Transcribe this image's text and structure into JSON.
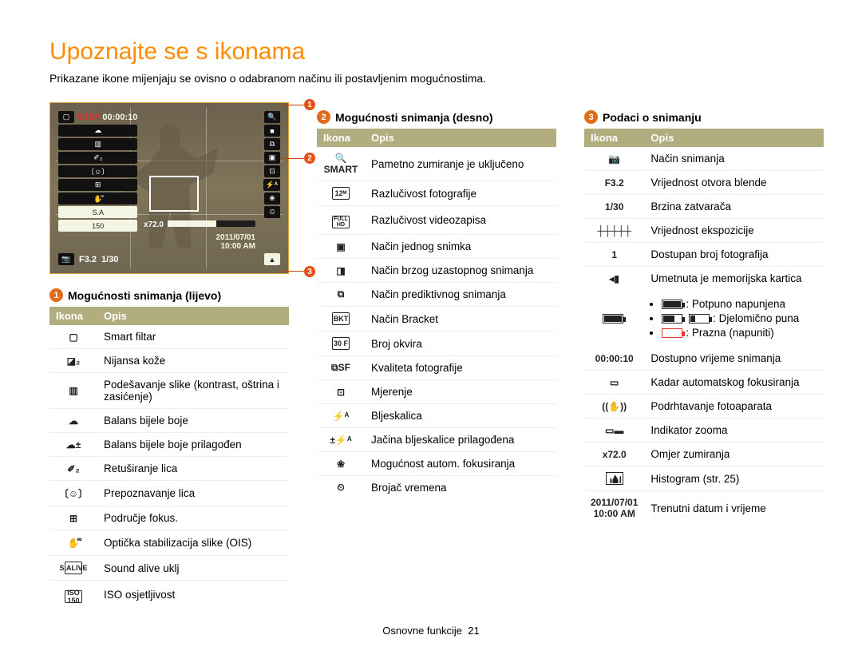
{
  "page": {
    "title": "Upoznajte se s ikonama",
    "subtitle": "Prikazane ikone mijenjaju se ovisno o odabranom načinu ili postavljenim mogućnostima.",
    "footer_label": "Osnovne funkcije",
    "footer_page": "21"
  },
  "headers": {
    "icon": "Ikona",
    "desc": "Opis"
  },
  "sections": {
    "left": {
      "num": "1",
      "title": "Mogućnosti snimanja (lijevo)"
    },
    "right": {
      "num": "2",
      "title": "Mogućnosti snimanja (desno)"
    },
    "info": {
      "num": "3",
      "title": "Podaci o snimanju"
    }
  },
  "leftRows": [
    {
      "glyph": "▢",
      "desc": "Smart filtar"
    },
    {
      "glyph": "◪₂",
      "desc": "Nijansa kože"
    },
    {
      "glyph": "▥",
      "desc": "Podešavanje slike (kontrast, oštrina i zasićenje)"
    },
    {
      "glyph": "☁",
      "desc": "Balans bijele boje"
    },
    {
      "glyph": "☁±",
      "desc": "Balans bijele boje prilagođen"
    },
    {
      "glyph": "✐₂",
      "desc": "Retuširanje lica"
    },
    {
      "glyph": "〔☺〕",
      "desc": "Prepoznavanje lica"
    },
    {
      "glyph": "⊞",
      "desc": "Područje fokus."
    },
    {
      "glyph": "✋᪲",
      "desc": "Optička stabilizacija slike (OIS)"
    },
    {
      "glyph": "S.ALIVE",
      "desc": "Sound alive uklj"
    },
    {
      "glyph": "ISO 150",
      "desc": "ISO osjetljivost"
    }
  ],
  "rightRows": [
    {
      "glyph": "🔍 SMART",
      "desc": "Pametno zumiranje je uključeno"
    },
    {
      "glyph": "12ᴹ",
      "desc": "Razlučivost fotografije"
    },
    {
      "glyph": "FULL HD",
      "desc": "Razlučivost videozapisa"
    },
    {
      "glyph": "▣",
      "desc": "Način jednog snimka"
    },
    {
      "glyph": "◨",
      "desc": "Način brzog uzastopnog snimanja"
    },
    {
      "glyph": "⧉",
      "desc": "Način prediktivnog snimanja"
    },
    {
      "glyph": "BKT",
      "desc": "Način Bracket"
    },
    {
      "glyph": "30 F",
      "desc": "Broj okvira"
    },
    {
      "glyph": "⧉SF",
      "desc": "Kvaliteta fotografije"
    },
    {
      "glyph": "⊡",
      "desc": "Mjerenje"
    },
    {
      "glyph": "⚡ᴬ",
      "desc": "Bljeskalica"
    },
    {
      "glyph": "±⚡ᴬ",
      "desc": "Jačina bljeskalice prilagođena"
    },
    {
      "glyph": "❀",
      "desc": "Mogućnost autom. fokusiranja"
    },
    {
      "glyph": "⏲",
      "desc": "Brojač vremena"
    }
  ],
  "infoRows": [
    {
      "glyph": "📷",
      "desc": "Način snimanja"
    },
    {
      "glyph": "F3.2",
      "desc": "Vrijednost otvora blende"
    },
    {
      "glyph": "1/30",
      "desc": "Brzina zatvarača"
    },
    {
      "glyph": "┼┼┼┼┼",
      "desc": "Vrijednost ekspozicije"
    },
    {
      "glyph": "1",
      "desc": "Dostupan broj fotografija"
    },
    {
      "glyph": "◂▮",
      "desc": "Umetnuta je memorijska kartica"
    }
  ],
  "battery": {
    "full": ": Potpuno napunjena",
    "partial": ": Djelomično puna",
    "empty": ": Prazna (napuniti)"
  },
  "infoRows2": [
    {
      "glyph": "00:00:10",
      "desc": "Dostupno vrijeme snimanja"
    },
    {
      "glyph": "▭",
      "desc": "Kadar automatskog fokusiranja"
    },
    {
      "glyph": "((✋))",
      "desc": "Podrhtavanje fotoaparata"
    },
    {
      "glyph": "▭▬",
      "desc": "Indikator zooma"
    },
    {
      "glyph": "x72.0",
      "desc": "Omjer zumiranja"
    },
    {
      "glyph": "HIST",
      "desc": "Histogram (str. 25)"
    },
    {
      "glyph": "2011/07/01 10:00 AM",
      "desc": "Trenutni datum i vrijeme"
    }
  ],
  "screen": {
    "stby": "STBY",
    "timecode": "00:00:10",
    "zoom_label": "x72.0",
    "bottom": {
      "aperture": "F3.2",
      "shutter": "1/30"
    },
    "date": "2011/07/01",
    "time": "10:00 AM"
  }
}
